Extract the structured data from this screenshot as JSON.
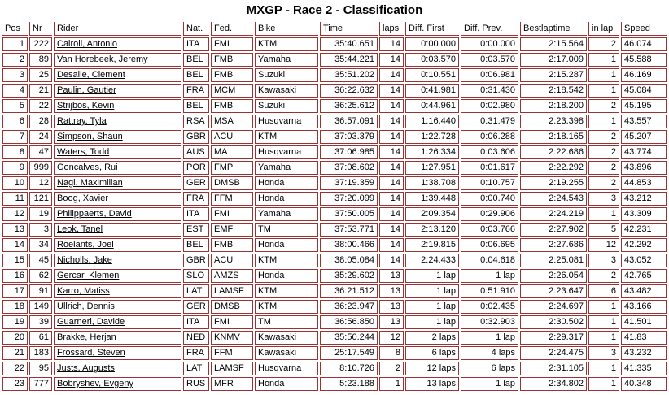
{
  "title": "MXGP - Race 2 - Classification",
  "colors": {
    "table_border": "#993333",
    "text": "#000000",
    "background": "#ffffff"
  },
  "table": {
    "columns": [
      {
        "key": "pos",
        "label": "Pos"
      },
      {
        "key": "nr",
        "label": "Nr"
      },
      {
        "key": "rider",
        "label": "Rider"
      },
      {
        "key": "nat",
        "label": "Nat."
      },
      {
        "key": "fed",
        "label": "Fed."
      },
      {
        "key": "bike",
        "label": "Bike"
      },
      {
        "key": "time",
        "label": "Time"
      },
      {
        "key": "laps",
        "label": "laps"
      },
      {
        "key": "diff_first",
        "label": "Diff. First"
      },
      {
        "key": "diff_prev",
        "label": "Diff. Prev."
      },
      {
        "key": "bestlaptime",
        "label": "Bestlaptime"
      },
      {
        "key": "in_lap",
        "label": "in lap"
      },
      {
        "key": "speed",
        "label": "Speed"
      }
    ],
    "rows": [
      [
        "1",
        "222",
        "Cairoli, Antonio",
        "ITA",
        "FMI",
        "KTM",
        "35:40.651",
        "14",
        "0:00.000",
        "0:00.000",
        "2:15.564",
        "2",
        "46.074"
      ],
      [
        "2",
        "89",
        "Van Horebeek, Jeremy",
        "BEL",
        "FMB",
        "Yamaha",
        "35:44.221",
        "14",
        "0:03.570",
        "0:03.570",
        "2:17.009",
        "1",
        "45.588"
      ],
      [
        "3",
        "25",
        "Desalle, Clement",
        "BEL",
        "FMB",
        "Suzuki",
        "35:51.202",
        "14",
        "0:10.551",
        "0:06.981",
        "2:15.287",
        "1",
        "46.169"
      ],
      [
        "4",
        "21",
        "Paulin, Gautier",
        "FRA",
        "MCM",
        "Kawasaki",
        "36:22.632",
        "14",
        "0:41.981",
        "0:31.430",
        "2:18.542",
        "1",
        "45.084"
      ],
      [
        "5",
        "22",
        "Strijbos, Kevin",
        "BEL",
        "FMB",
        "Suzuki",
        "36:25.612",
        "14",
        "0:44.961",
        "0:02.980",
        "2:18.200",
        "2",
        "45.195"
      ],
      [
        "6",
        "28",
        "Rattray, Tyla",
        "RSA",
        "MSA",
        "Husqvarna",
        "36:57.091",
        "14",
        "1:16.440",
        "0:31.479",
        "2:23.398",
        "1",
        "43.557"
      ],
      [
        "7",
        "24",
        "Simpson, Shaun",
        "GBR",
        "ACU",
        "KTM",
        "37:03.379",
        "14",
        "1:22.728",
        "0:06.288",
        "2:18.165",
        "2",
        "45.207"
      ],
      [
        "8",
        "47",
        "Waters, Todd",
        "AUS",
        "MA",
        "Husqvarna",
        "37:06.985",
        "14",
        "1:26.334",
        "0:03.606",
        "2:22.686",
        "2",
        "43.774"
      ],
      [
        "9",
        "999",
        "Goncalves, Rui",
        "POR",
        "FMP",
        "Yamaha",
        "37:08.602",
        "14",
        "1:27.951",
        "0:01.617",
        "2:22.292",
        "2",
        "43.896"
      ],
      [
        "10",
        "12",
        "Nagl, Maximilian",
        "GER",
        "DMSB",
        "Honda",
        "37:19.359",
        "14",
        "1:38.708",
        "0:10.757",
        "2:19.255",
        "2",
        "44.853"
      ],
      [
        "11",
        "121",
        "Boog, Xavier",
        "FRA",
        "FFM",
        "Honda",
        "37:20.099",
        "14",
        "1:39.448",
        "0:00.740",
        "2:24.543",
        "3",
        "43.212"
      ],
      [
        "12",
        "19",
        "Philippaerts, David",
        "ITA",
        "FMI",
        "Yamaha",
        "37:50.005",
        "14",
        "2:09.354",
        "0:29.906",
        "2:24.219",
        "1",
        "43.309"
      ],
      [
        "13",
        "3",
        "Leok, Tanel",
        "EST",
        "EMF",
        "TM",
        "37:53.771",
        "14",
        "2:13.120",
        "0:03.766",
        "2:27.902",
        "5",
        "42.231"
      ],
      [
        "14",
        "34",
        "Roelants, Joel",
        "BEL",
        "FMB",
        "Honda",
        "38:00.466",
        "14",
        "2:19.815",
        "0:06.695",
        "2:27.686",
        "12",
        "42.292"
      ],
      [
        "15",
        "45",
        "Nicholls, Jake",
        "GBR",
        "ACU",
        "KTM",
        "38:05.084",
        "14",
        "2:24.433",
        "0:04.618",
        "2:25.081",
        "3",
        "43.052"
      ],
      [
        "16",
        "62",
        "Gercar, Klemen",
        "SLO",
        "AMZS",
        "Honda",
        "35:29.602",
        "13",
        "1 lap",
        "1 lap",
        "2:26.054",
        "2",
        "42.765"
      ],
      [
        "17",
        "91",
        "Karro, Matiss",
        "LAT",
        "LAMSF",
        "KTM",
        "36:21.512",
        "13",
        "1 lap",
        "0:51.910",
        "2:23.647",
        "6",
        "43.482"
      ],
      [
        "18",
        "149",
        "Ullrich, Dennis",
        "GER",
        "DMSB",
        "KTM",
        "36:23.947",
        "13",
        "1 lap",
        "0:02.435",
        "2:24.697",
        "1",
        "43.166"
      ],
      [
        "19",
        "39",
        "Guarneri, Davide",
        "ITA",
        "FMI",
        "TM",
        "36:56.850",
        "13",
        "1 lap",
        "0:32.903",
        "2:30.502",
        "1",
        "41.501"
      ],
      [
        "20",
        "61",
        "Brakke, Herjan",
        "NED",
        "KNMV",
        "Kawasaki",
        "35:50.244",
        "12",
        "2 laps",
        "1 lap",
        "2:29.317",
        "1",
        "41.83"
      ],
      [
        "21",
        "183",
        "Frossard, Steven",
        "FRA",
        "FFM",
        "Kawasaki",
        "25:17.549",
        "8",
        "6 laps",
        "4 laps",
        "2:24.475",
        "3",
        "43.232"
      ],
      [
        "22",
        "95",
        "Justs, Augusts",
        "LAT",
        "LAMSF",
        "Husqvarna",
        "8:10.726",
        "2",
        "12 laps",
        "6 laps",
        "2:31.105",
        "1",
        "41.335"
      ],
      [
        "23",
        "777",
        "Bobryshev, Evgeny",
        "RUS",
        "MFR",
        "Honda",
        "5:23.188",
        "1",
        "13 laps",
        "1 lap",
        "2:34.802",
        "1",
        "40.348"
      ]
    ]
  }
}
